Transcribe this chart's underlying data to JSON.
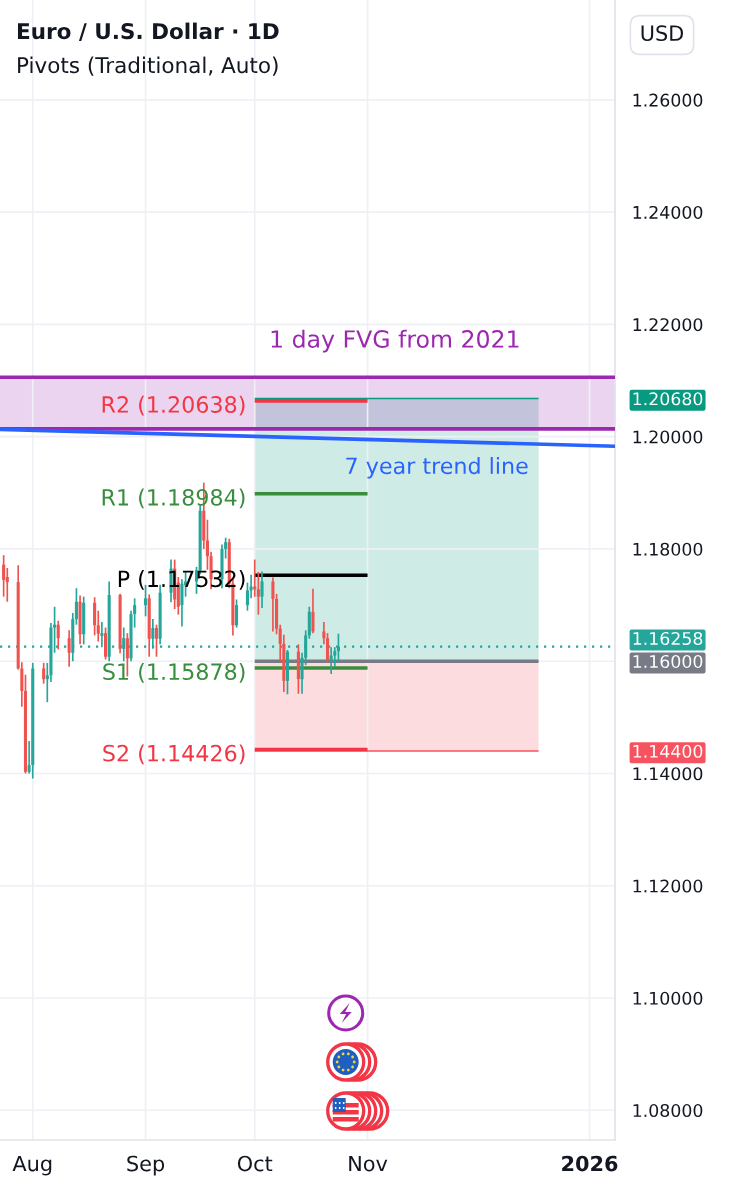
{
  "chart_data": {
    "type": "candlestick",
    "title": "Euro / U.S. Dollar · 1D",
    "subtitle": "Pivots (Traditional, Auto)",
    "annotations": [
      "USD"
    ],
    "x": [
      "2025-07-24",
      "2025-07-25",
      "2025-07-28",
      "2025-07-29",
      "2025-07-30",
      "2025-07-31",
      "2025-08-01",
      "2025-08-04",
      "2025-08-05",
      "2025-08-06",
      "2025-08-07",
      "2025-08-08",
      "2025-08-11",
      "2025-08-12",
      "2025-08-13",
      "2025-08-14",
      "2025-08-15",
      "2025-08-18",
      "2025-08-19",
      "2025-08-20",
      "2025-08-21",
      "2025-08-22",
      "2025-08-25",
      "2025-08-26",
      "2025-08-27",
      "2025-08-28",
      "2025-08-29",
      "2025-09-01",
      "2025-09-02",
      "2025-09-03",
      "2025-09-04",
      "2025-09-05",
      "2025-09-08",
      "2025-09-09",
      "2025-09-10",
      "2025-09-11",
      "2025-09-12",
      "2025-09-15",
      "2025-09-16",
      "2025-09-17",
      "2025-09-18",
      "2025-09-19",
      "2025-09-22",
      "2025-09-23",
      "2025-09-24",
      "2025-09-25",
      "2025-09-26",
      "2025-09-29",
      "2025-09-30",
      "2025-10-01",
      "2025-10-02",
      "2025-10-03",
      "2025-10-06",
      "2025-10-07",
      "2025-10-08",
      "2025-10-09",
      "2025-10-10",
      "2025-10-13",
      "2025-10-14",
      "2025-10-15",
      "2025-10-16",
      "2025-10-17",
      "2025-10-20",
      "2025-10-21",
      "2025-10-22",
      "2025-10-23",
      "2025-10-24"
    ],
    "ohlc": [
      [
        1.1772,
        1.1789,
        1.1715,
        1.1745
      ],
      [
        1.175,
        1.1766,
        1.1706,
        1.1741
      ],
      [
        1.1741,
        1.1771,
        1.1585,
        1.1587
      ],
      [
        1.1587,
        1.1598,
        1.1519,
        1.1547
      ],
      [
        1.1547,
        1.1576,
        1.14,
        1.1403
      ],
      [
        1.1403,
        1.1458,
        1.14,
        1.1415
      ],
      [
        1.1415,
        1.1597,
        1.1391,
        1.1587
      ],
      [
        1.1587,
        1.1597,
        1.156,
        1.1568
      ],
      [
        1.1568,
        1.1597,
        1.1527,
        1.1575
      ],
      [
        1.1575,
        1.1668,
        1.1563,
        1.166
      ],
      [
        1.166,
        1.1697,
        1.1615,
        1.1665
      ],
      [
        1.1665,
        1.1672,
        1.1621,
        1.1641
      ],
      [
        1.1641,
        1.1655,
        1.159,
        1.1615
      ],
      [
        1.1615,
        1.1686,
        1.16,
        1.1675
      ],
      [
        1.1675,
        1.173,
        1.1665,
        1.1706
      ],
      [
        1.1706,
        1.1717,
        1.163,
        1.1648
      ],
      [
        1.1648,
        1.1715,
        1.163,
        1.1704
      ],
      [
        1.1704,
        1.1714,
        1.1646,
        1.1664
      ],
      [
        1.1664,
        1.169,
        1.1635,
        1.1649
      ],
      [
        1.1645,
        1.167,
        1.1625,
        1.165
      ],
      [
        1.165,
        1.166,
        1.1603,
        1.1608
      ],
      [
        1.1608,
        1.1742,
        1.16,
        1.1718
      ],
      [
        1.1718,
        1.172,
        1.1614,
        1.1622
      ],
      [
        1.1622,
        1.166,
        1.16,
        1.1641
      ],
      [
        1.1641,
        1.165,
        1.1573,
        1.1605
      ],
      [
        1.1605,
        1.169,
        1.16,
        1.1684
      ],
      [
        1.1684,
        1.1712,
        1.166,
        1.17
      ],
      [
        1.17,
        1.1736,
        1.168,
        1.1712
      ],
      [
        1.1712,
        1.1719,
        1.1608,
        1.164
      ],
      [
        1.164,
        1.1675,
        1.1622,
        1.1659
      ],
      [
        1.1659,
        1.1665,
        1.1608,
        1.164
      ],
      [
        1.164,
        1.1736,
        1.163,
        1.1722
      ],
      [
        1.1722,
        1.1781,
        1.1705,
        1.1765
      ],
      [
        1.1765,
        1.1781,
        1.1693,
        1.171
      ],
      [
        1.174,
        1.175,
        1.1683,
        1.1697
      ],
      [
        1.17,
        1.1746,
        1.1662,
        1.1738
      ],
      [
        1.1735,
        1.176,
        1.1715,
        1.1742
      ],
      [
        1.1742,
        1.1768,
        1.172,
        1.1762
      ],
      [
        1.1762,
        1.188,
        1.1755,
        1.1868
      ],
      [
        1.1868,
        1.1918,
        1.18,
        1.1815
      ],
      [
        1.1815,
        1.1852,
        1.1763,
        1.1787
      ],
      [
        1.1787,
        1.1795,
        1.1728,
        1.1746
      ],
      [
        1.1746,
        1.1808,
        1.173,
        1.18
      ],
      [
        1.18,
        1.182,
        1.1783,
        1.1812
      ],
      [
        1.1812,
        1.1818,
        1.173,
        1.1738
      ],
      [
        1.1738,
        1.1748,
        1.1646,
        1.1664
      ],
      [
        1.1664,
        1.171,
        1.166,
        1.17
      ],
      [
        1.17,
        1.174,
        1.169,
        1.1726
      ],
      [
        1.1726,
        1.1754,
        1.1712,
        1.1733
      ],
      [
        1.1733,
        1.1781,
        1.1715,
        1.1728
      ],
      [
        1.1728,
        1.1759,
        1.1683,
        1.1715
      ],
      [
        1.1715,
        1.176,
        1.1695,
        1.1742
      ],
      [
        1.1742,
        1.1749,
        1.1653,
        1.1711
      ],
      [
        1.1711,
        1.172,
        1.1648,
        1.1658
      ],
      [
        1.1658,
        1.1665,
        1.16,
        1.1631
      ],
      [
        1.1631,
        1.1647,
        1.1545,
        1.1565
      ],
      [
        1.1565,
        1.162,
        1.1541,
        1.1617
      ],
      [
        1.1617,
        1.163,
        1.1542,
        1.1568
      ],
      [
        1.1568,
        1.1615,
        1.1542,
        1.1606
      ],
      [
        1.1606,
        1.1655,
        1.1593,
        1.1646
      ],
      [
        1.1646,
        1.1697,
        1.164,
        1.1688
      ],
      [
        1.1688,
        1.1729,
        1.165,
        1.1653
      ],
      [
        1.1653,
        1.167,
        1.163,
        1.1641
      ],
      [
        1.1641,
        1.165,
        1.1597,
        1.1602
      ],
      [
        1.1602,
        1.1625,
        1.1577,
        1.161
      ],
      [
        1.161,
        1.1625,
        1.1589,
        1.1618
      ],
      [
        1.1618,
        1.1649,
        1.16,
        1.1626
      ]
    ],
    "colors": [
      "#ef5350",
      "#ef5350",
      "#ef5350",
      "#ef5350",
      "#ef5350",
      "#26a69a",
      "#26a69a",
      "#ef5350",
      "#26a69a",
      "#26a69a",
      "#26a69a",
      "#ef5350",
      "#ef5350",
      "#26a69a",
      "#26a69a",
      "#ef5350",
      "#26a69a",
      "#ef5350",
      "#ef5350",
      "#26a69a",
      "#ef5350",
      "#26a69a",
      "#ef5350",
      "#26a69a",
      "#ef5350",
      "#26a69a",
      "#26a69a",
      "#26a69a",
      "#ef5350",
      "#26a69a",
      "#ef5350",
      "#26a69a",
      "#26a69a",
      "#ef5350",
      "#ef5350",
      "#26a69a",
      "#26a69a",
      "#26a69a",
      "#26a69a",
      "#ef5350",
      "#ef5350",
      "#ef5350",
      "#26a69a",
      "#26a69a",
      "#ef5350",
      "#ef5350",
      "#26a69a",
      "#26a69a",
      "#26a69a",
      "#ef5350",
      "#ef5350",
      "#26a69a",
      "#ef5350",
      "#ef5350",
      "#ef5350",
      "#ef5350",
      "#26a69a",
      "#ef5350",
      "#26a69a",
      "#26a69a",
      "#26a69a",
      "#ef5350",
      "#ef5350",
      "#ef5350",
      "#26a69a",
      "#26a69a",
      "#26a69a"
    ],
    "series": [
      {
        "type": "line",
        "color": "#089981",
        "x": [
          "2025-10-01",
          "2025-12-18"
        ],
        "values": [
          1.2068,
          1.2068
        ],
        "lower": [
          1.16,
          1.16
        ],
        "upper": [
          1.2068,
          1.2068
        ]
      },
      {
        "type": "line",
        "color": "#f7525f",
        "x": [
          "2025-10-01",
          "2025-12-18"
        ],
        "values": [
          1.144,
          1.144
        ],
        "lower": [
          1.144,
          1.144
        ],
        "upper": [
          1.16,
          1.16
        ]
      },
      {
        "type": "line",
        "color": "#787b86",
        "x": [
          "2025-10-01",
          "2025-12-18"
        ],
        "values": [
          1.16,
          1.16
        ]
      },
      {
        "type": "line",
        "name": "R2 (1.20638)",
        "color": "#f23645",
        "x": [
          "2025-10-01",
          "2025-11-01"
        ],
        "values": [
          1.20638,
          1.20638
        ]
      },
      {
        "type": "line",
        "name": "R1 (1.18984)",
        "color": "#388e3c",
        "x": [
          "2025-10-01",
          "2025-11-01"
        ],
        "values": [
          1.18984,
          1.18984
        ]
      },
      {
        "type": "line",
        "name": "P (1.17532)",
        "color": "#000000",
        "x": [
          "2025-10-01",
          "2025-11-01"
        ],
        "values": [
          1.17532,
          1.17532
        ]
      },
      {
        "type": "line",
        "name": "S1 (1.15878)",
        "color": "#388e3c",
        "x": [
          "2025-10-01",
          "2025-11-01"
        ],
        "values": [
          1.15878,
          1.15878
        ]
      },
      {
        "type": "line",
        "name": "S2 (1.14426)",
        "color": "#f23645",
        "x": [
          "2025-10-01",
          "2025-11-01"
        ],
        "values": [
          1.14426,
          1.14426
        ]
      },
      {
        "type": "line",
        "name": "7 year trend line",
        "color": "#2962ff",
        "x": [
          "2025-07-23",
          "2026-01-08"
        ],
        "values": [
          1.2013,
          1.1983
        ]
      }
    ],
    "bands": [
      {
        "axis": "y",
        "from": 1.2014,
        "to": 1.2106,
        "label": "1 day FVG from 2021",
        "color": "#9c27b0"
      }
    ],
    "ref_lines": [
      {
        "axis": "y",
        "value": 1.2106,
        "color": "#9c27b0"
      },
      {
        "axis": "y",
        "value": 1.2014,
        "color": "#9c27b0"
      },
      {
        "axis": "y",
        "value": 1.16258,
        "label": "1.16258",
        "color": "#26a69a",
        "line_style": "dotted"
      }
    ],
    "xlim": [
      "2025-07-23",
      "2026-01-08"
    ],
    "xticks": [
      {
        "value": "2025-08-01",
        "label": "Aug"
      },
      {
        "value": "2025-09-01",
        "label": "Sep"
      },
      {
        "value": "2025-10-01",
        "label": "Oct"
      },
      {
        "value": "2025-11-01",
        "label": "Nov"
      },
      {
        "value": "2026-01-01",
        "label": "2026"
      }
    ],
    "ylim": [
      1.0747,
      1.2778
    ],
    "yticks": [
      {
        "value": 1.08,
        "label": "1.08000"
      },
      {
        "value": 1.1,
        "label": "1.10000"
      },
      {
        "value": 1.12,
        "label": "1.12000"
      },
      {
        "value": 1.14,
        "label": "1.14000"
      },
      {
        "value": 1.144,
        "label": "1.14400"
      },
      {
        "value": 1.16,
        "label": "1.16000"
      },
      {
        "value": 1.18,
        "label": "1.18000"
      },
      {
        "value": 1.2,
        "label": "1.20000"
      },
      {
        "value": 1.2068,
        "label": "1.20680"
      },
      {
        "value": 1.22,
        "label": "1.22000"
      },
      {
        "value": 1.24,
        "label": "1.24000"
      },
      {
        "value": 1.26,
        "label": "1.26000"
      }
    ],
    "grid": true
  }
}
